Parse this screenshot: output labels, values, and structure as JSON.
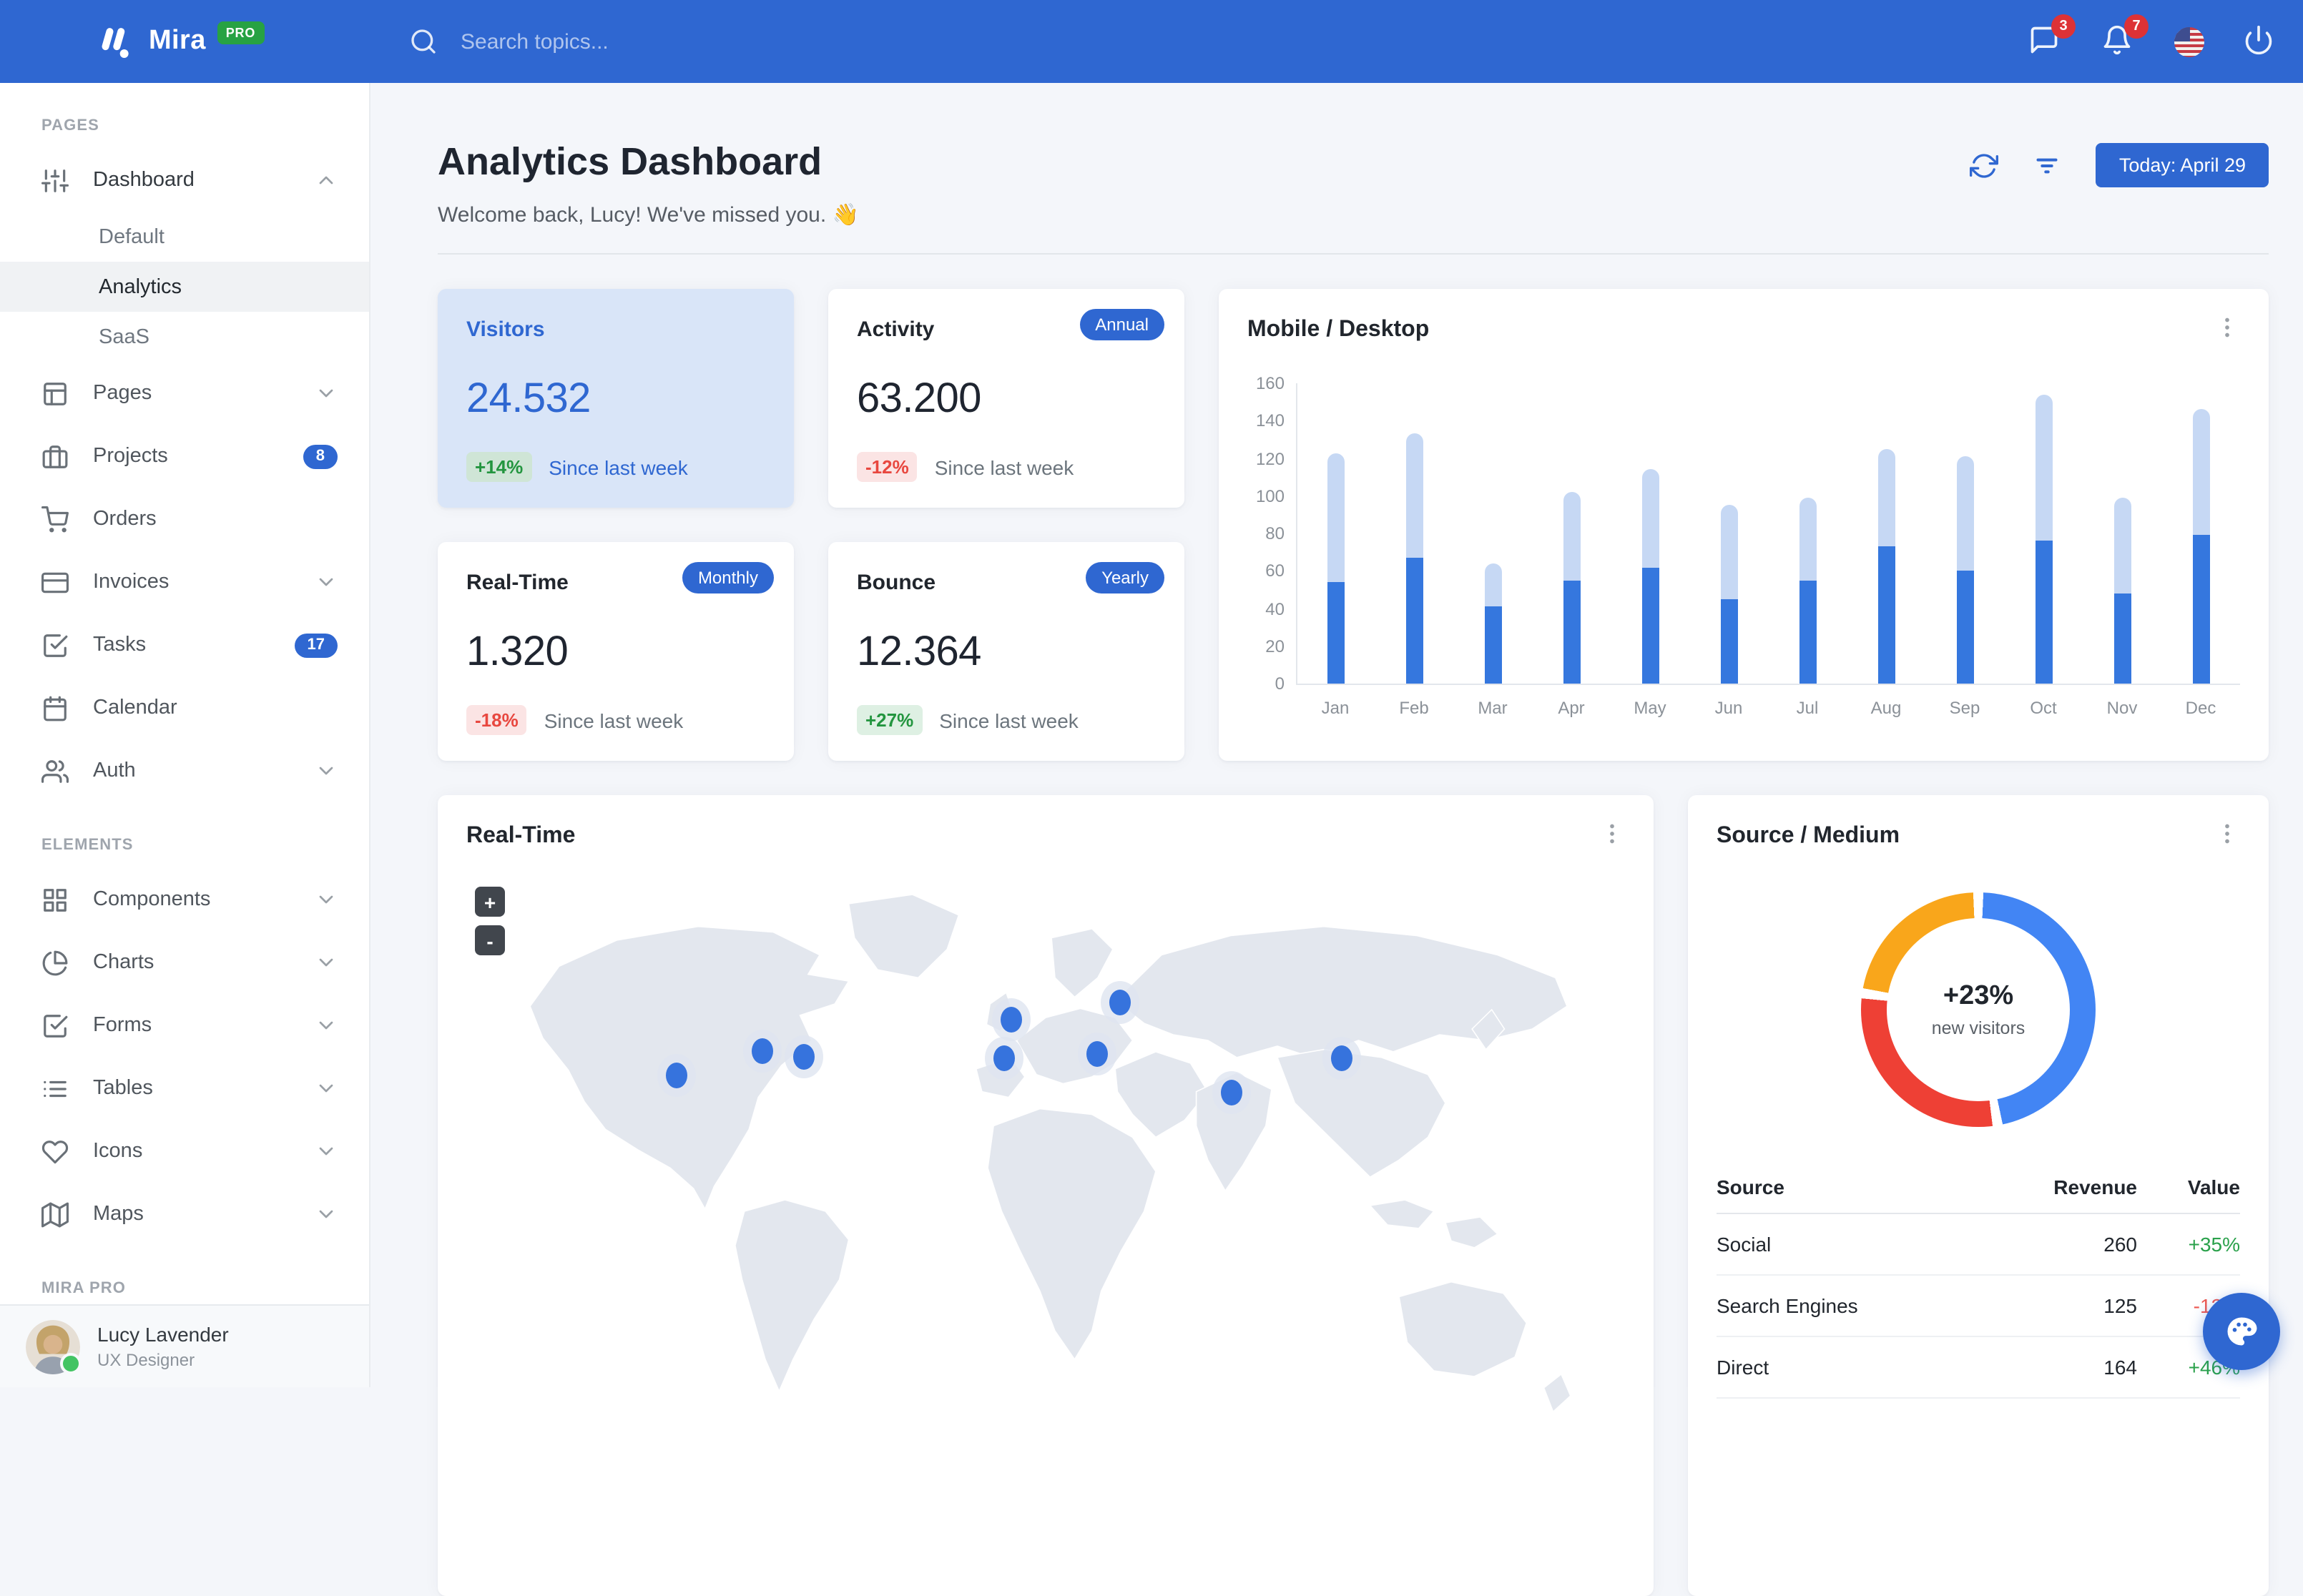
{
  "navbar": {
    "brand": "Mira",
    "brand_badge": "PRO",
    "search_placeholder": "Search topics...",
    "messages_badge": "3",
    "alerts_badge": "7"
  },
  "sidebar": {
    "sections": [
      {
        "label": "PAGES",
        "items": [
          {
            "icon": "sliders",
            "label": "Dashboard",
            "chevron": "up",
            "active_parent": true,
            "children": [
              {
                "label": "Default",
                "active": false
              },
              {
                "label": "Analytics",
                "active": true
              },
              {
                "label": "SaaS",
                "active": false
              }
            ]
          },
          {
            "icon": "layout",
            "label": "Pages",
            "chevron": "down"
          },
          {
            "icon": "briefcase",
            "label": "Projects",
            "badge": "8"
          },
          {
            "icon": "shopping-cart",
            "label": "Orders"
          },
          {
            "icon": "credit-card",
            "label": "Invoices",
            "chevron": "down"
          },
          {
            "icon": "check-square",
            "label": "Tasks",
            "badge": "17"
          },
          {
            "icon": "calendar",
            "label": "Calendar"
          },
          {
            "icon": "users",
            "label": "Auth",
            "chevron": "down"
          }
        ]
      },
      {
        "label": "ELEMENTS",
        "items": [
          {
            "icon": "grid",
            "label": "Components",
            "chevron": "down"
          },
          {
            "icon": "pie-chart",
            "label": "Charts",
            "chevron": "down"
          },
          {
            "icon": "check-square",
            "label": "Forms",
            "chevron": "down"
          },
          {
            "icon": "list",
            "label": "Tables",
            "chevron": "down"
          },
          {
            "icon": "heart",
            "label": "Icons",
            "chevron": "down"
          },
          {
            "icon": "map",
            "label": "Maps",
            "chevron": "down"
          }
        ]
      },
      {
        "label": "MIRA PRO",
        "items": []
      }
    ],
    "user": {
      "name": "Lucy Lavender",
      "role": "UX Designer"
    }
  },
  "header": {
    "title": "Analytics Dashboard",
    "welcome": "Welcome back, Lucy! We've missed you. 👋",
    "date_button": "Today: April 29"
  },
  "stats": [
    {
      "title": "Visitors",
      "value": "24.532",
      "badge": "",
      "delta": "+14%",
      "delta_type": "positive",
      "caption": "Since last week",
      "highlight": true
    },
    {
      "title": "Activity",
      "value": "63.200",
      "badge": "Annual",
      "delta": "-12%",
      "delta_type": "negative",
      "caption": "Since last week",
      "highlight": false
    },
    {
      "title": "Real-Time",
      "value": "1.320",
      "badge": "Monthly",
      "delta": "-18%",
      "delta_type": "negative",
      "caption": "Since last week",
      "highlight": false
    },
    {
      "title": "Bounce",
      "value": "12.364",
      "badge": "Yearly",
      "delta": "+27%",
      "delta_type": "positive",
      "caption": "Since last week",
      "highlight": false
    }
  ],
  "chart_data": [
    {
      "type": "bar",
      "stacked": true,
      "title": "Mobile / Desktop",
      "categories": [
        "Jan",
        "Feb",
        "Mar",
        "Apr",
        "May",
        "Jun",
        "Jul",
        "Aug",
        "Sep",
        "Oct",
        "Nov",
        "Dec"
      ],
      "series": [
        {
          "name": "Mobile",
          "color": "#3577de",
          "values": [
            54,
            67,
            41,
            55,
            62,
            45,
            55,
            73,
            60,
            76,
            48,
            79
          ]
        },
        {
          "name": "Desktop",
          "color": "#c6d8f4",
          "values": [
            69,
            66,
            23,
            47,
            52,
            50,
            44,
            52,
            61,
            78,
            51,
            67
          ]
        }
      ],
      "ylim": [
        0,
        160
      ],
      "ytick_step": 20,
      "grid": false,
      "legend": "none"
    },
    {
      "type": "pie",
      "donut": true,
      "title": "Source / Medium",
      "center_text": "+23%",
      "center_subtext": "new visitors",
      "segments": [
        {
          "label": "Social",
          "value": 260,
          "color": "#4285f4"
        },
        {
          "label": "Direct",
          "value": 164,
          "color": "#ee4035"
        },
        {
          "label": "Search Engines",
          "value": 125,
          "color": "#f9a61b"
        }
      ]
    }
  ],
  "map_card": {
    "title": "Real-Time",
    "zoom_in": "+",
    "zoom_out": "-",
    "markers": [
      {
        "x": 18.1,
        "y": 30.7
      },
      {
        "x": 25.6,
        "y": 27.0
      },
      {
        "x": 29.1,
        "y": 27.8
      },
      {
        "x": 47.0,
        "y": 22.4
      },
      {
        "x": 46.4,
        "y": 28.0
      },
      {
        "x": 56.4,
        "y": 19.8
      },
      {
        "x": 54.4,
        "y": 27.4
      },
      {
        "x": 66.1,
        "y": 33.1
      },
      {
        "x": 75.5,
        "y": 28.0
      }
    ]
  },
  "source_card": {
    "title": "Source / Medium",
    "center_value": "+23%",
    "center_label": "new visitors",
    "table": {
      "headers": [
        "Source",
        "Revenue",
        "Value"
      ],
      "rows": [
        {
          "source": "Social",
          "revenue": "260",
          "value": "+35%"
        },
        {
          "source": "Search Engines",
          "revenue": "125",
          "value": "-12%"
        },
        {
          "source": "Direct",
          "revenue": "164",
          "value": "+46%"
        }
      ]
    }
  },
  "colors": {
    "primary": "#2f67d1",
    "badge_red": "#dd3236",
    "positive": "#2aa14b",
    "negative": "#ee5a52",
    "map_land": "#e3e7ee",
    "marker": "#3673dd"
  }
}
